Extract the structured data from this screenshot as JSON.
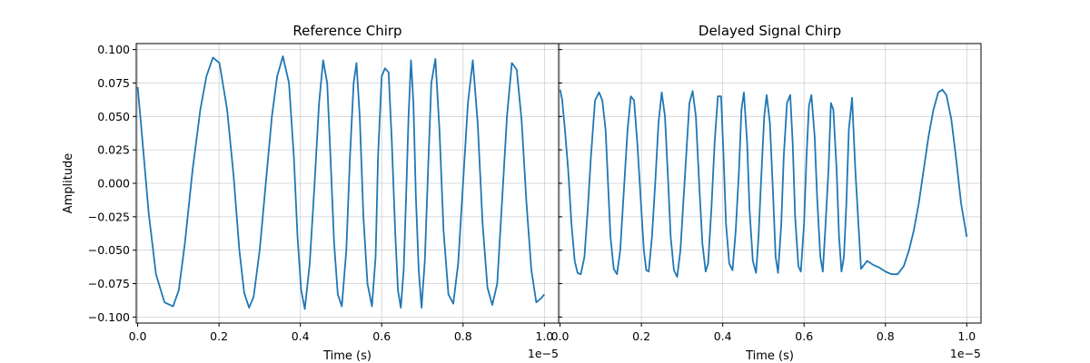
{
  "chart_data": [
    {
      "type": "line",
      "title": "Reference Chirp",
      "xlabel": "Time (s)",
      "ylabel": "Amplitude",
      "x_offset_label": "1e−5",
      "xlim": [
        -3.5e-08,
        1.035e-05
      ],
      "ylim": [
        -0.1045,
        0.1045
      ],
      "xticks": [
        0,
        0.2,
        0.4,
        0.6,
        0.8,
        1.0
      ],
      "xtick_labels": [
        "0.0",
        "0.2",
        "0.4",
        "0.6",
        "0.8",
        "1.0"
      ],
      "yticks": [
        -0.1,
        -0.075,
        -0.05,
        -0.025,
        0,
        0.025,
        0.05,
        0.075,
        0.1
      ],
      "ytick_labels": [
        "−0.100",
        "−0.075",
        "−0.050",
        "−0.025",
        "0.000",
        "0.025",
        "0.050",
        "0.075",
        "0.100"
      ],
      "grid": true,
      "color": "#1f77b4",
      "x": [
        0,
        8e-08,
        2.7e-07,
        4.5e-07,
        6.6e-07,
        8.7e-07,
        1.01e-06,
        1.16e-06,
        1.35e-06,
        1.54e-06,
        1.69e-06,
        1.85e-06,
        2.01e-06,
        2.2e-06,
        2.36e-06,
        2.5e-06,
        2.62e-06,
        2.74e-06,
        2.85e-06,
        3e-06,
        3.15e-06,
        3.3e-06,
        3.43e-06,
        3.57e-06,
        3.72e-06,
        3.84e-06,
        3.93e-06,
        4.02e-06,
        4.11e-06,
        4.23e-06,
        4.35e-06,
        4.46e-06,
        4.56e-06,
        4.66e-06,
        4.74e-06,
        4.83e-06,
        4.92e-06,
        5.02e-06,
        5.13e-06,
        5.22e-06,
        5.31e-06,
        5.38e-06,
        5.46e-06,
        5.55e-06,
        5.65e-06,
        5.76e-06,
        5.85e-06,
        5.91e-06,
        6e-06,
        6.08e-06,
        6.17e-06,
        6.25e-06,
        6.33e-06,
        6.4e-06,
        6.47e-06,
        6.54e-06,
        6.6e-06,
        6.66e-06,
        6.72e-06,
        6.78e-06,
        6.84e-06,
        6.91e-06,
        6.98e-06,
        7.06e-06,
        7.14e-06,
        7.22e-06,
        7.32e-06,
        7.42e-06,
        7.52e-06,
        7.64e-06,
        7.76e-06,
        7.88e-06,
        8e-06,
        8.12e-06,
        8.24e-06,
        8.36e-06,
        8.48e-06,
        8.6e-06,
        8.72e-06,
        8.84e-06,
        8.96e-06,
        9.08e-06,
        9.2e-06,
        9.32e-06,
        9.44e-06,
        9.56e-06,
        9.68e-06,
        9.8e-06,
        9.92e-06,
        1e-05
      ],
      "y": [
        0.072,
        0.045,
        -0.022,
        -0.068,
        -0.089,
        -0.092,
        -0.08,
        -0.045,
        0.01,
        0.055,
        0.08,
        0.094,
        0.09,
        0.055,
        0.005,
        -0.05,
        -0.082,
        -0.093,
        -0.085,
        -0.05,
        0.0,
        0.05,
        0.08,
        0.095,
        0.075,
        0.02,
        -0.04,
        -0.08,
        -0.094,
        -0.06,
        0.0,
        0.06,
        0.092,
        0.075,
        0.02,
        -0.045,
        -0.083,
        -0.092,
        -0.05,
        0.02,
        0.075,
        0.09,
        0.05,
        -0.025,
        -0.075,
        -0.092,
        -0.055,
        0.02,
        0.08,
        0.086,
        0.083,
        0.03,
        -0.035,
        -0.08,
        -0.093,
        -0.065,
        -0.01,
        0.05,
        0.092,
        0.06,
        -0.01,
        -0.065,
        -0.093,
        -0.058,
        0.01,
        0.075,
        0.093,
        0.04,
        -0.035,
        -0.083,
        -0.09,
        -0.06,
        0.0,
        0.06,
        0.092,
        0.045,
        -0.03,
        -0.078,
        -0.091,
        -0.075,
        -0.013,
        0.05,
        0.09,
        0.085,
        0.047,
        -0.015,
        -0.065,
        -0.089,
        -0.086,
        -0.083
      ],
      "x_raw_note": "",
      "y_raw_note": ""
    },
    {
      "type": "line",
      "title": "Delayed Signal Chirp",
      "xlabel": "Time (s)",
      "ylabel": "",
      "x_offset_label": "1e−5",
      "xlim": [
        -3.5e-08,
        1.035e-05
      ],
      "ylim": [
        -0.1045,
        0.1045
      ],
      "xticks": [
        0,
        0.2,
        0.4,
        0.6,
        0.8,
        1.0
      ],
      "xtick_labels": [
        "0.0",
        "0.2",
        "0.4",
        "0.6",
        "0.8",
        "1.0"
      ],
      "grid": true,
      "color": "#1f77b4",
      "x": [
        0,
        5e-08,
        1.2e-07,
        2e-07,
        2.8e-07,
        3.6e-07,
        4.3e-07,
        5.1e-07,
        6e-07,
        6.8e-07,
        7.6e-07,
        8.6e-07,
        9.6e-07,
        1.04e-06,
        1.12e-06,
        1.18e-06,
        1.24e-06,
        1.32e-06,
        1.4e-06,
        1.48e-06,
        1.58e-06,
        1.66e-06,
        1.74e-06,
        1.82e-06,
        1.9e-06,
        1.98e-06,
        2.06e-06,
        2.12e-06,
        2.18e-06,
        2.26e-06,
        2.34e-06,
        2.42e-06,
        2.5e-06,
        2.58e-06,
        2.66e-06,
        2.72e-06,
        2.8e-06,
        2.88e-06,
        2.96e-06,
        3.04e-06,
        3.12e-06,
        3.18e-06,
        3.26e-06,
        3.34e-06,
        3.42e-06,
        3.5e-06,
        3.58e-06,
        3.64e-06,
        3.72e-06,
        3.8e-06,
        3.88e-06,
        3.96e-06,
        4.02e-06,
        4.08e-06,
        4.16e-06,
        4.24e-06,
        4.32e-06,
        4.4e-06,
        4.46e-06,
        4.52e-06,
        4.6e-06,
        4.66e-06,
        4.74e-06,
        4.82e-06,
        4.88e-06,
        4.94e-06,
        5.02e-06,
        5.08e-06,
        5.16e-06,
        5.24e-06,
        5.3e-06,
        5.36e-06,
        5.44e-06,
        5.5e-06,
        5.58e-06,
        5.66e-06,
        5.72e-06,
        5.78e-06,
        5.86e-06,
        5.92e-06,
        6e-06,
        6.06e-06,
        6.12e-06,
        6.18e-06,
        6.26e-06,
        6.32e-06,
        6.4e-06,
        6.46e-06,
        6.52e-06,
        6.6e-06,
        6.66e-06,
        6.72e-06,
        6.8e-06,
        6.86e-06,
        6.92e-06,
        6.98e-06,
        7.04e-06,
        7.1e-06,
        7.18e-06,
        7.26e-06,
        7.4e-06,
        7.55e-06,
        7.7e-06,
        7.85e-06,
        8e-06,
        8.15e-06,
        8.3e-06,
        8.45e-06,
        8.58e-06,
        8.7e-06,
        8.82e-06,
        8.94e-06,
        9.06e-06,
        9.18e-06,
        9.3e-06,
        9.4e-06,
        9.5e-06,
        9.62e-06,
        9.74e-06,
        9.86e-06,
        1e-05
      ],
      "y": [
        0.07,
        0.063,
        0.04,
        0.01,
        -0.03,
        -0.058,
        -0.067,
        -0.068,
        -0.055,
        -0.02,
        0.02,
        0.062,
        0.068,
        0.062,
        0.04,
        0.0,
        -0.04,
        -0.064,
        -0.068,
        -0.05,
        0.0,
        0.04,
        0.065,
        0.062,
        0.03,
        -0.01,
        -0.05,
        -0.065,
        -0.066,
        -0.04,
        0.0,
        0.045,
        0.068,
        0.05,
        0.0,
        -0.04,
        -0.065,
        -0.07,
        -0.05,
        -0.01,
        0.03,
        0.06,
        0.069,
        0.05,
        0.0,
        -0.045,
        -0.066,
        -0.06,
        -0.02,
        0.03,
        0.065,
        0.065,
        0.02,
        -0.03,
        -0.06,
        -0.065,
        -0.035,
        0.01,
        0.055,
        0.068,
        0.03,
        -0.02,
        -0.058,
        -0.067,
        -0.04,
        0.0,
        0.05,
        0.066,
        0.045,
        -0.01,
        -0.055,
        -0.067,
        -0.03,
        0.02,
        0.06,
        0.066,
        0.03,
        -0.025,
        -0.062,
        -0.066,
        -0.03,
        0.02,
        0.058,
        0.066,
        0.035,
        -0.01,
        -0.055,
        -0.066,
        -0.035,
        0.01,
        0.06,
        0.055,
        0.01,
        -0.04,
        -0.066,
        -0.055,
        -0.015,
        0.04,
        0.064,
        0.01,
        -0.064,
        -0.058,
        -0.061,
        -0.063,
        -0.066,
        -0.068,
        -0.068,
        -0.062,
        -0.05,
        -0.035,
        -0.015,
        0.01,
        0.035,
        0.055,
        0.068,
        0.07,
        0.066,
        0.048,
        0.018,
        -0.015,
        -0.04
      ]
    }
  ]
}
